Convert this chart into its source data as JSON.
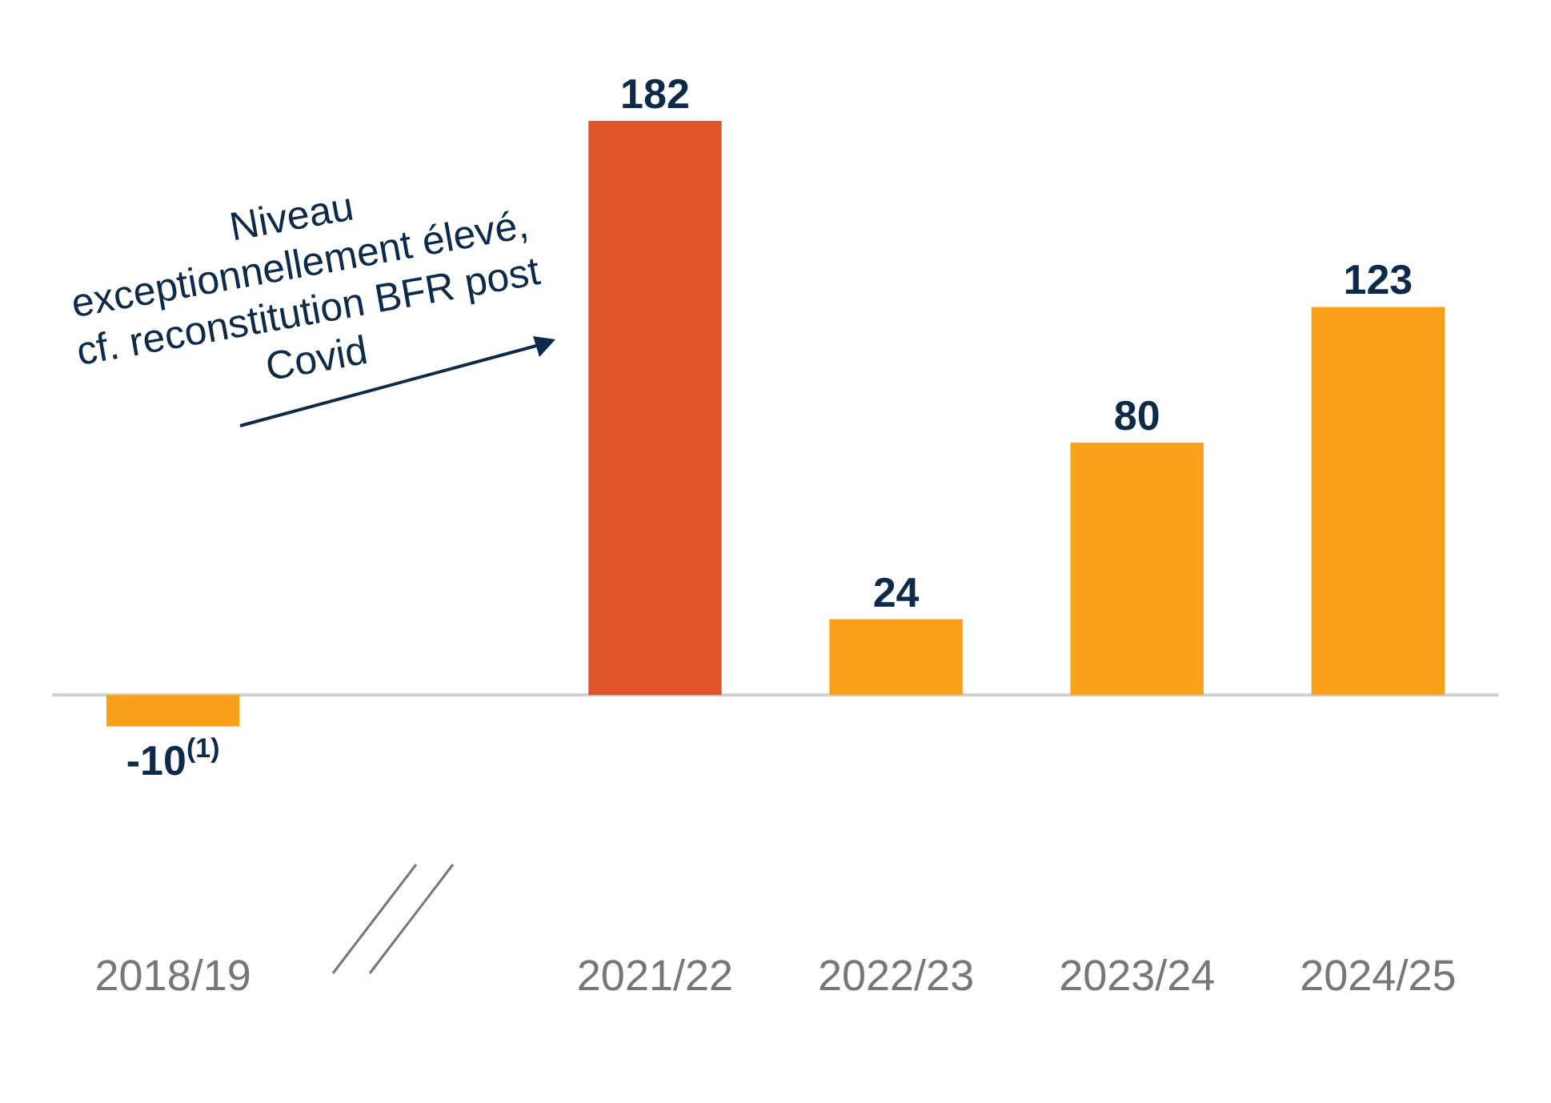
{
  "chart_data": {
    "type": "bar",
    "categories": [
      "2018/19",
      null,
      "2021/22",
      "2022/23",
      "2023/24",
      "2024/25"
    ],
    "values": [
      -10,
      null,
      182,
      24,
      80,
      123
    ],
    "colors": [
      "#f9a11b",
      null,
      "#e0542a",
      "#f9a11b",
      "#f9a11b",
      "#f9a11b"
    ],
    "value_labels": [
      "-10$^{(1)}$",
      null,
      "182",
      "24",
      "80",
      "123"
    ],
    "annotations": [
      "Niveau exceptionnellement élevé, cf. reconstitution BFR post Covid"
    ],
    "grid": false,
    "legend": false
  }
}
